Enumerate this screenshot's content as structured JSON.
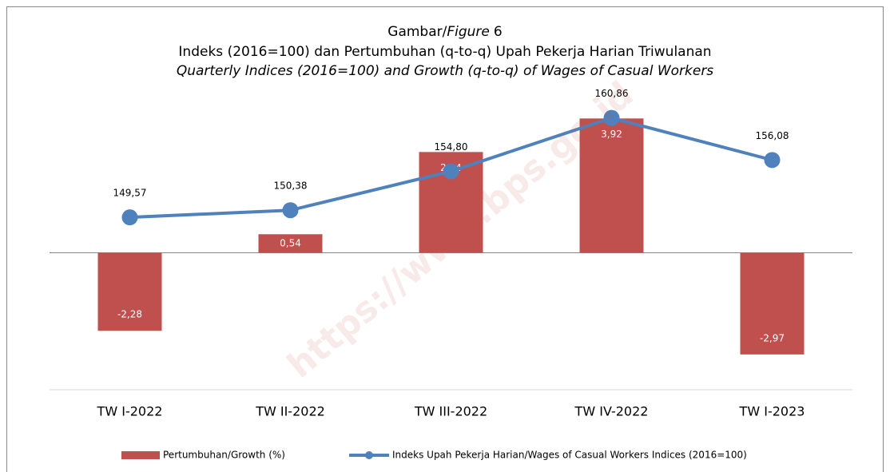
{
  "chart_data": {
    "type": "bar+line",
    "figure_label": [
      "Gambar/",
      "Figure",
      "6"
    ],
    "title": "Indeks (2016=100) dan Pertumbuhan (q-to-q) Upah Pekerja Harian Triwulanan",
    "subtitle": "Quarterly Indices (2016=100) and Growth (q-to-q) of Wages of Casual Workers",
    "watermark": "https://www.bps.go.id",
    "categories": [
      "TW I-2022",
      "TW II-2022",
      "TW III-2022",
      "TW IV-2022",
      "TW I-2023"
    ],
    "series": [
      {
        "name": "Pertumbuhan/Growth (%)",
        "type": "bar",
        "color": "#c0504d",
        "values": [
          -2.28,
          0.54,
          2.94,
          3.92,
          -2.97
        ],
        "value_labels": [
          "-2,28",
          "0,54",
          "2,94",
          "3,92",
          "-2,97"
        ]
      },
      {
        "name": "Indeks Upah Pekerja Harian/Wages of Casual Workers Indices (2016=100)",
        "type": "line",
        "axis": "y2",
        "color": "#4f81bd",
        "values": [
          149.57,
          150.38,
          154.8,
          160.86,
          156.08
        ],
        "value_labels": [
          "149,57",
          "150,38",
          "154,80",
          "160,86",
          "156,08"
        ]
      }
    ],
    "ylim": [
      -4,
      5
    ],
    "y2lim": [
      130,
      165
    ],
    "legend": "bottom"
  }
}
